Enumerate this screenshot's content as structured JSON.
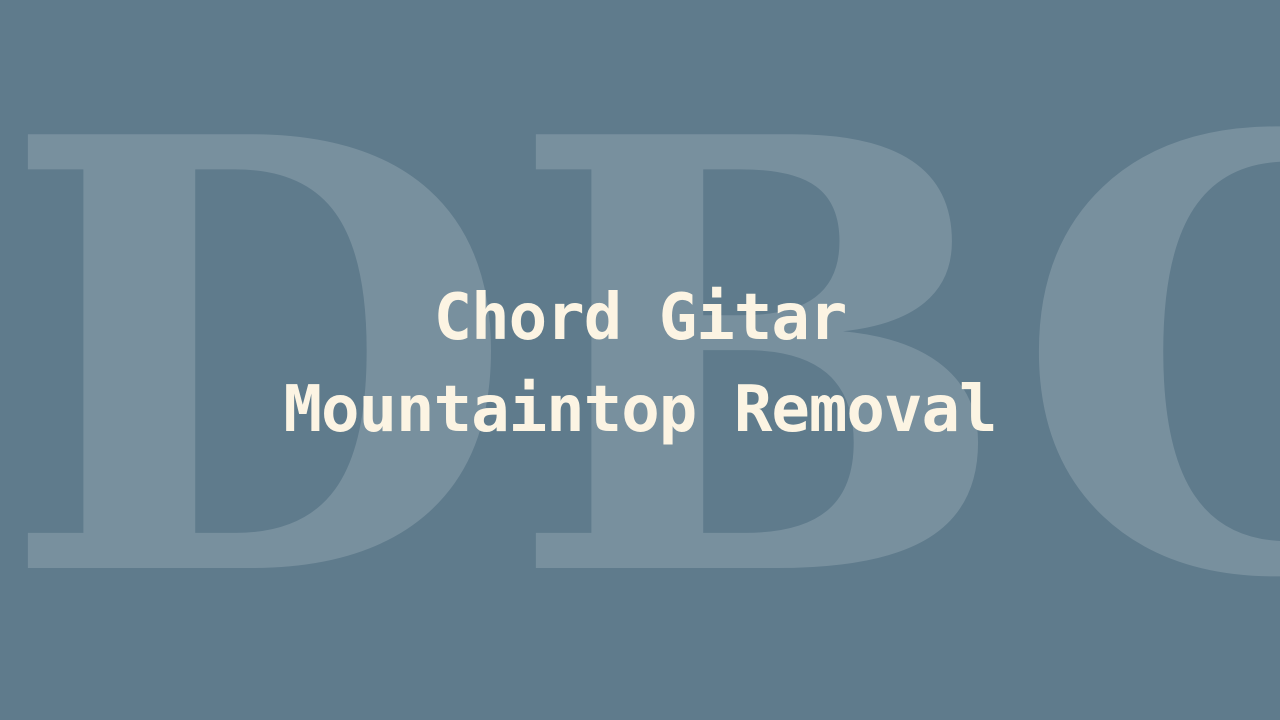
{
  "watermark": {
    "text": "DBC"
  },
  "title": {
    "line1": "Chord Gitar",
    "line2": "Mountaintop Removal"
  },
  "colors": {
    "background": "#5f7b8c",
    "title_text": "#fcf4e3",
    "watermark_text": "rgba(255,255,255,0.16)"
  }
}
